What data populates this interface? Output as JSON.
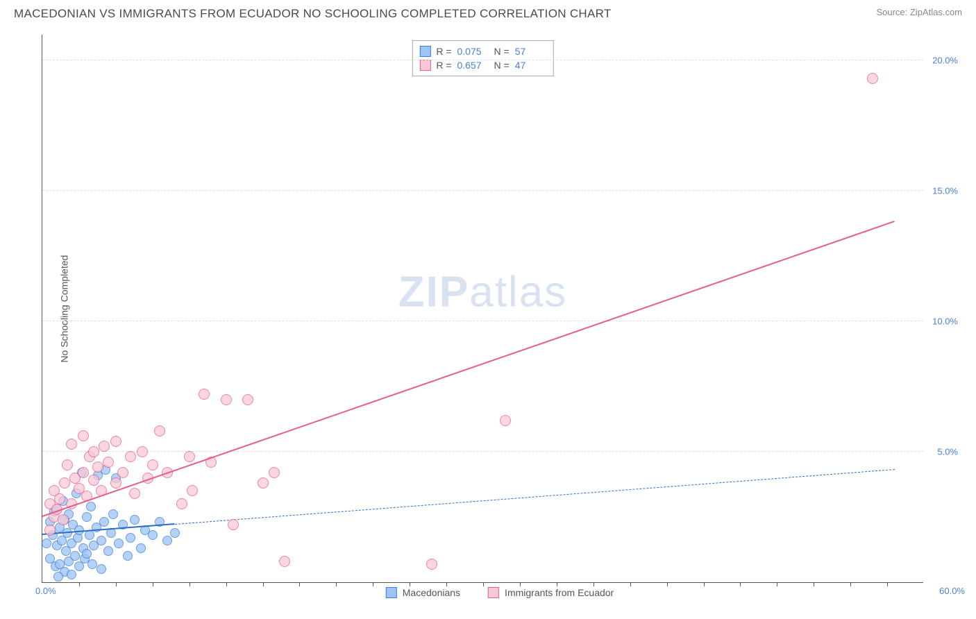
{
  "title": "MACEDONIAN VS IMMIGRANTS FROM ECUADOR NO SCHOOLING COMPLETED CORRELATION CHART",
  "source": "Source: ZipAtlas.com",
  "watermark": {
    "left": "ZIP",
    "right": "atlas"
  },
  "y_axis_label": "No Schooling Completed",
  "chart": {
    "type": "scatter",
    "background_color": "#ffffff",
    "grid_color": "#dddddd",
    "axis_color": "#555555",
    "tick_label_color": "#4a7fd8",
    "x_range": [
      0,
      60
    ],
    "y_range": [
      0,
      21
    ],
    "x_origin_label": "0.0%",
    "x_max_label": "60.0%",
    "y_ticks": [
      {
        "value": 5,
        "label": "5.0%"
      },
      {
        "value": 10,
        "label": "10.0%"
      },
      {
        "value": 15,
        "label": "15.0%"
      },
      {
        "value": 20,
        "label": "20.0%"
      }
    ],
    "x_minor_ticks": [
      2.5,
      5,
      7.5,
      10,
      12.5,
      15,
      17.5,
      20,
      22.5,
      25,
      27.5,
      30,
      32.5,
      35,
      37.5,
      40,
      42.5,
      45,
      47.5,
      50,
      52.5,
      55,
      57.5
    ],
    "series": [
      {
        "id": "macedonians",
        "name": "Macedonians",
        "R": "0.075",
        "N": "57",
        "marker_fill": "#9cc4f5",
        "marker_stroke": "#3d7cd9",
        "marker_radius": 7,
        "trend_color": "#2b6cca",
        "trend_solid": {
          "x1": 0,
          "y1": 1.8,
          "x2": 9,
          "y2": 2.2
        },
        "trend_dashed": {
          "x1": 9,
          "y1": 2.2,
          "x2": 58,
          "y2": 4.3
        },
        "points": [
          [
            0.3,
            1.5
          ],
          [
            0.5,
            2.3
          ],
          [
            0.5,
            0.9
          ],
          [
            0.7,
            1.8
          ],
          [
            0.8,
            2.7
          ],
          [
            0.9,
            0.6
          ],
          [
            1.0,
            1.4
          ],
          [
            1.0,
            2.8
          ],
          [
            1.2,
            2.1
          ],
          [
            1.2,
            0.7
          ],
          [
            1.3,
            1.6
          ],
          [
            1.4,
            3.1
          ],
          [
            1.5,
            0.4
          ],
          [
            1.5,
            2.4
          ],
          [
            1.6,
            1.2
          ],
          [
            1.7,
            1.9
          ],
          [
            1.8,
            0.8
          ],
          [
            1.8,
            2.6
          ],
          [
            2.0,
            1.5
          ],
          [
            2.0,
            0.3
          ],
          [
            2.1,
            2.2
          ],
          [
            2.2,
            1.0
          ],
          [
            2.3,
            3.4
          ],
          [
            2.4,
            1.7
          ],
          [
            2.5,
            0.6
          ],
          [
            2.5,
            2.0
          ],
          [
            2.7,
            4.2
          ],
          [
            2.8,
            1.3
          ],
          [
            2.9,
            0.9
          ],
          [
            3.0,
            2.5
          ],
          [
            3.0,
            1.1
          ],
          [
            3.2,
            1.8
          ],
          [
            3.3,
            2.9
          ],
          [
            3.4,
            0.7
          ],
          [
            3.5,
            1.4
          ],
          [
            3.7,
            2.1
          ],
          [
            3.8,
            4.1
          ],
          [
            4.0,
            1.6
          ],
          [
            4.0,
            0.5
          ],
          [
            4.2,
            2.3
          ],
          [
            4.3,
            4.3
          ],
          [
            4.5,
            1.2
          ],
          [
            4.7,
            1.9
          ],
          [
            4.8,
            2.6
          ],
          [
            5.0,
            4.0
          ],
          [
            5.2,
            1.5
          ],
          [
            5.5,
            2.2
          ],
          [
            5.8,
            1.0
          ],
          [
            6.0,
            1.7
          ],
          [
            6.3,
            2.4
          ],
          [
            6.7,
            1.3
          ],
          [
            7.0,
            2.0
          ],
          [
            7.5,
            1.8
          ],
          [
            8.0,
            2.3
          ],
          [
            8.5,
            1.6
          ],
          [
            9.0,
            1.9
          ],
          [
            1.1,
            0.2
          ]
        ]
      },
      {
        "id": "ecuador",
        "name": "Immigrants from Ecuador",
        "R": "0.657",
        "N": "47",
        "marker_fill": "#f7c9d6",
        "marker_stroke": "#e85c8a",
        "marker_radius": 8,
        "trend_color": "#e85c8a",
        "trend_solid": {
          "x1": 0,
          "y1": 2.5,
          "x2": 58,
          "y2": 13.8
        },
        "points": [
          [
            0.5,
            2.0
          ],
          [
            0.5,
            3.0
          ],
          [
            0.8,
            2.5
          ],
          [
            0.8,
            3.5
          ],
          [
            1.0,
            2.8
          ],
          [
            1.2,
            3.2
          ],
          [
            1.4,
            2.4
          ],
          [
            1.5,
            3.8
          ],
          [
            1.7,
            4.5
          ],
          [
            2.0,
            3.0
          ],
          [
            2.0,
            5.3
          ],
          [
            2.2,
            4.0
          ],
          [
            2.5,
            3.6
          ],
          [
            2.8,
            4.2
          ],
          [
            2.8,
            5.6
          ],
          [
            3.0,
            3.3
          ],
          [
            3.2,
            4.8
          ],
          [
            3.5,
            3.9
          ],
          [
            3.5,
            5.0
          ],
          [
            3.8,
            4.4
          ],
          [
            4.0,
            3.5
          ],
          [
            4.2,
            5.2
          ],
          [
            4.5,
            4.6
          ],
          [
            5.0,
            3.8
          ],
          [
            5.0,
            5.4
          ],
          [
            5.5,
            4.2
          ],
          [
            6.0,
            4.8
          ],
          [
            6.3,
            3.4
          ],
          [
            6.8,
            5.0
          ],
          [
            7.2,
            4.0
          ],
          [
            7.5,
            4.5
          ],
          [
            8.0,
            5.8
          ],
          [
            8.5,
            4.2
          ],
          [
            9.5,
            3.0
          ],
          [
            10.0,
            4.8
          ],
          [
            10.2,
            3.5
          ],
          [
            11.0,
            7.2
          ],
          [
            11.5,
            4.6
          ],
          [
            12.5,
            7.0
          ],
          [
            13.0,
            2.2
          ],
          [
            14.0,
            7.0
          ],
          [
            15.0,
            3.8
          ],
          [
            15.8,
            4.2
          ],
          [
            16.5,
            0.8
          ],
          [
            26.5,
            0.7
          ],
          [
            31.5,
            6.2
          ],
          [
            56.5,
            19.3
          ]
        ]
      }
    ]
  },
  "stats_labels": {
    "R": "R =",
    "N": "N ="
  }
}
